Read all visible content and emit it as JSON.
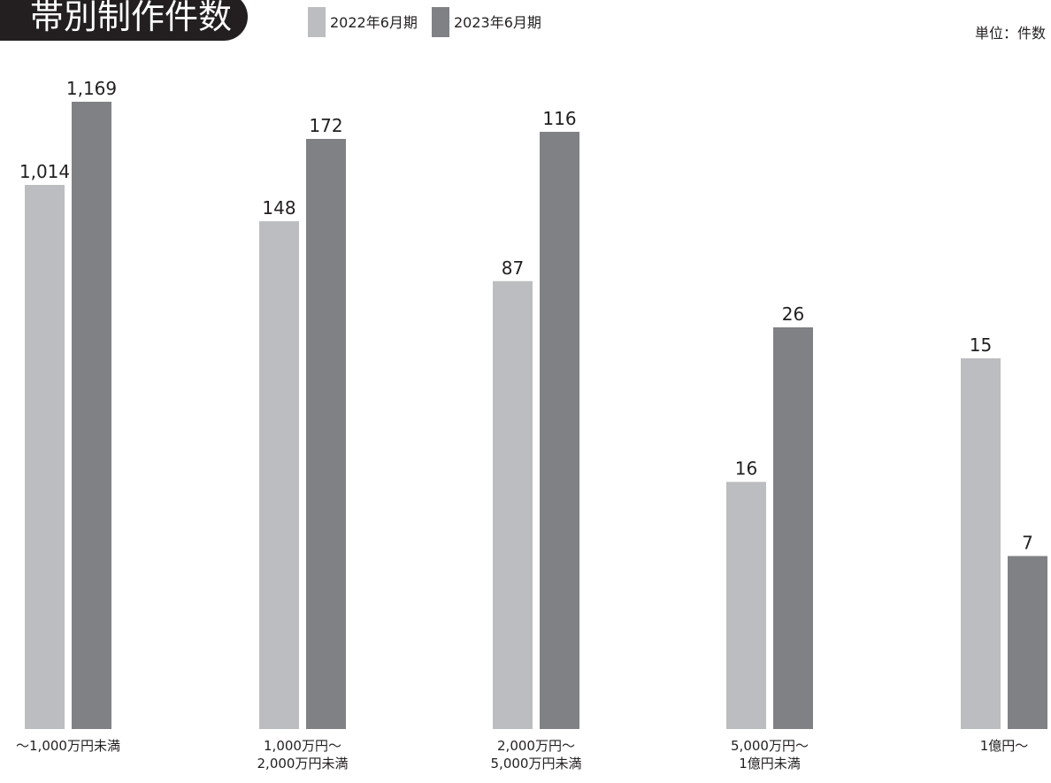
{
  "chart_data": {
    "type": "bar",
    "title": "帯別制作件数",
    "unit_label": "単位：件数",
    "categories": [
      [
        "〜1,000万円未満"
      ],
      [
        "1,000万円〜",
        "2,000万円未満"
      ],
      [
        "2,000万円〜",
        "5,000万円未満"
      ],
      [
        "5,000万円〜",
        "1億円未満"
      ],
      [
        "1億円〜"
      ]
    ],
    "series": [
      {
        "name": "2022年6月期",
        "color": "#bcbdc0",
        "values": [
          1014,
          148,
          87,
          16,
          15
        ]
      },
      {
        "name": "2023年6月期",
        "color": "#808184",
        "values": [
          1169,
          172,
          116,
          26,
          7
        ]
      }
    ],
    "value_labels": [
      [
        "1,014",
        "148",
        "87",
        "16",
        "15"
      ],
      [
        "1,169",
        "172",
        "116",
        "26",
        "7"
      ]
    ],
    "bar_heights_note": "each category group is drawn on its own independent scale",
    "legend_position": "top",
    "grid": false
  }
}
